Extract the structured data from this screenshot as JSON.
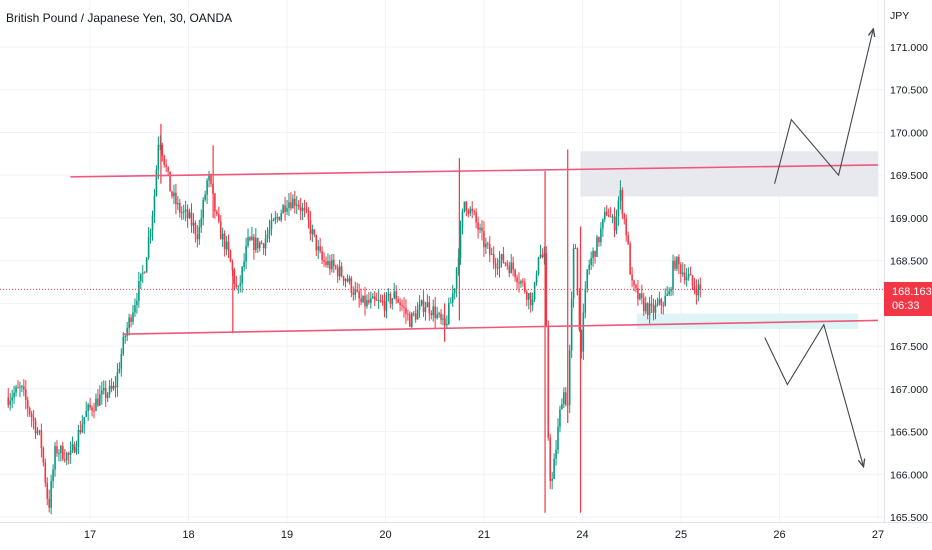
{
  "header": {
    "title": "British Pound / Japanese Yen, 30, OANDA"
  },
  "colors": {
    "up": "#089981",
    "down": "#f23645",
    "channel": "#f0577a",
    "zone_supply": "#e8e9ee",
    "zone_demand": "#def4f6",
    "grid": "#f0f3fa",
    "projection": "#434651"
  },
  "price_badge": {
    "price": "168.163",
    "countdown": "06:33"
  },
  "chart_data": {
    "type": "candlestick",
    "title": "British Pound / Japanese Yen, 30, OANDA",
    "y_unit": "JPY",
    "ylim": [
      165.5,
      171.5
    ],
    "y_ticks": [
      "171.000",
      "170.500",
      "170.000",
      "169.500",
      "169.000",
      "168.500",
      "168.000",
      "167.500",
      "167.000",
      "166.500",
      "166.000",
      "165.500"
    ],
    "y_tick_values": [
      171.0,
      170.5,
      170.0,
      169.5,
      169.0,
      168.5,
      168.0,
      167.5,
      167.0,
      166.5,
      166.0,
      165.5
    ],
    "x_ticks": [
      "17",
      "18",
      "19",
      "20",
      "21",
      "24",
      "25",
      "26",
      "27"
    ],
    "x_tick_days": [
      0,
      1,
      2,
      3,
      4,
      5,
      6,
      7,
      8
    ],
    "xlim": [
      -0.83,
      8.0
    ],
    "last_price": 168.163,
    "price_path": [
      [
        -0.83,
        166.9
      ],
      [
        -0.7,
        167.0
      ],
      [
        -0.5,
        166.4
      ],
      [
        -0.42,
        165.6
      ],
      [
        -0.35,
        166.3
      ],
      [
        -0.2,
        166.2
      ],
      [
        -0.05,
        166.7
      ],
      [
        0.1,
        166.9
      ],
      [
        0.25,
        167.0
      ],
      [
        0.35,
        167.6
      ],
      [
        0.45,
        168.0
      ],
      [
        0.55,
        168.4
      ],
      [
        0.65,
        169.2
      ],
      [
        0.7,
        170.0
      ],
      [
        0.75,
        169.7
      ],
      [
        0.82,
        169.3
      ],
      [
        0.9,
        169.1
      ],
      [
        1.0,
        169.0
      ],
      [
        1.1,
        168.8
      ],
      [
        1.2,
        169.5
      ],
      [
        1.3,
        168.9
      ],
      [
        1.4,
        168.6
      ],
      [
        1.5,
        168.1
      ],
      [
        1.6,
        168.7
      ],
      [
        1.75,
        168.7
      ],
      [
        1.85,
        168.9
      ],
      [
        2.0,
        169.2
      ],
      [
        2.1,
        169.2
      ],
      [
        2.2,
        169.0
      ],
      [
        2.35,
        168.5
      ],
      [
        2.5,
        168.4
      ],
      [
        2.6,
        168.3
      ],
      [
        2.75,
        168.0
      ],
      [
        2.9,
        168.0
      ],
      [
        3.0,
        168.0
      ],
      [
        3.1,
        168.1
      ],
      [
        3.25,
        167.8
      ],
      [
        3.4,
        168.0
      ],
      [
        3.5,
        167.9
      ],
      [
        3.6,
        167.7
      ],
      [
        3.7,
        168.2
      ],
      [
        3.8,
        169.2
      ],
      [
        3.9,
        169.0
      ],
      [
        4.0,
        168.7
      ],
      [
        4.1,
        168.5
      ],
      [
        4.2,
        168.5
      ],
      [
        4.3,
        168.4
      ],
      [
        4.4,
        168.2
      ],
      [
        4.5,
        168.0
      ],
      [
        4.55,
        168.6
      ],
      [
        4.62,
        168.5
      ],
      [
        4.65,
        166.5
      ],
      [
        4.68,
        165.8
      ],
      [
        4.75,
        166.5
      ],
      [
        4.8,
        167.0
      ],
      [
        4.85,
        166.8
      ],
      [
        4.92,
        168.9
      ],
      [
        4.98,
        167.4
      ],
      [
        5.05,
        168.4
      ],
      [
        5.15,
        168.7
      ],
      [
        5.25,
        169.1
      ],
      [
        5.32,
        168.9
      ],
      [
        5.38,
        169.3
      ],
      [
        5.45,
        168.8
      ],
      [
        5.5,
        168.2
      ],
      [
        5.6,
        168.0
      ],
      [
        5.7,
        167.9
      ],
      [
        5.8,
        168.0
      ],
      [
        5.88,
        168.1
      ],
      [
        5.93,
        168.5
      ],
      [
        6.0,
        168.4
      ],
      [
        6.08,
        168.3
      ],
      [
        6.12,
        168.2
      ],
      [
        6.2,
        168.16
      ]
    ],
    "wicks": [
      {
        "day": 4.62,
        "high": 169.55,
        "low": 165.55
      },
      {
        "day": 4.85,
        "high": 169.8,
        "low": 166.6
      },
      {
        "day": 4.98,
        "high": 168.9,
        "low": 165.55
      },
      {
        "day": 0.72,
        "high": 170.1,
        "low": 169.4
      },
      {
        "day": 1.25,
        "high": 169.85,
        "low": 169.0
      },
      {
        "day": 3.75,
        "high": 169.7,
        "low": 167.8
      },
      {
        "day": 1.45,
        "high": 168.4,
        "low": 167.65
      },
      {
        "day": 3.6,
        "high": 168.0,
        "low": 167.55
      }
    ],
    "channel": {
      "upper": [
        [
          -0.2,
          169.48
        ],
        [
          8.0,
          169.62
        ]
      ],
      "lower": [
        [
          0.33,
          167.64
        ],
        [
          8.0,
          167.8
        ]
      ]
    },
    "zones": [
      {
        "kind": "supply",
        "x": [
          4.98,
          8.0
        ],
        "y": [
          169.25,
          169.78
        ]
      },
      {
        "kind": "demand",
        "x": [
          5.55,
          7.8
        ],
        "y": [
          167.7,
          167.88
        ]
      }
    ],
    "projections": [
      {
        "points": [
          [
            6.95,
            169.4
          ],
          [
            7.12,
            170.15
          ],
          [
            7.6,
            169.5
          ],
          [
            7.95,
            171.2
          ]
        ]
      },
      {
        "points": [
          [
            6.85,
            167.6
          ],
          [
            7.08,
            167.05
          ],
          [
            7.45,
            167.75
          ],
          [
            7.85,
            166.1
          ]
        ]
      }
    ]
  }
}
